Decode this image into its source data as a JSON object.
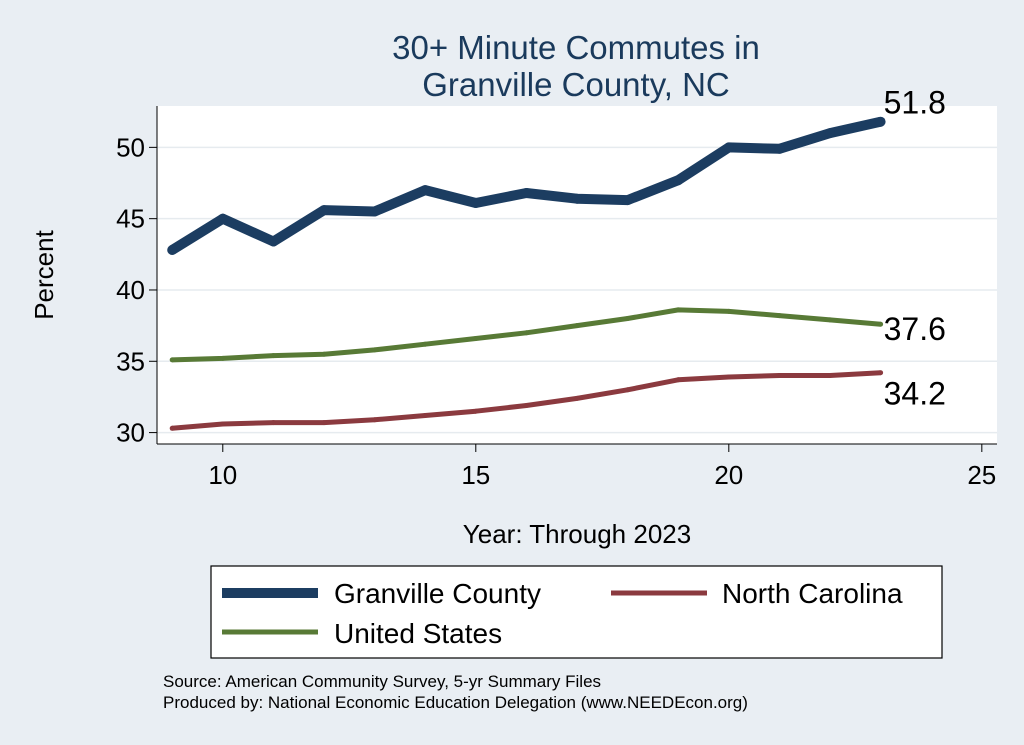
{
  "chart_data": {
    "type": "line",
    "title_lines": [
      "30+ Minute Commutes in",
      "Granville County, NC"
    ],
    "xlabel": "Year: Through 2023",
    "ylabel": "Percent",
    "xlim": [
      8.7,
      25.3
    ],
    "ylim": [
      29.2,
      52.9
    ],
    "xticks": [
      10,
      15,
      20,
      25
    ],
    "yticks": [
      30,
      35,
      40,
      45,
      50
    ],
    "x": [
      9,
      10,
      11,
      12,
      13,
      14,
      15,
      16,
      17,
      18,
      19,
      20,
      21,
      22,
      23
    ],
    "series": [
      {
        "name": "Granville County",
        "color": "#1c3d61",
        "values": [
          42.8,
          45.0,
          43.4,
          45.6,
          45.5,
          47.0,
          46.1,
          46.8,
          46.4,
          46.3,
          47.7,
          50.0,
          49.9,
          51.0,
          51.8
        ],
        "end_label": "51.8"
      },
      {
        "name": "North Carolina",
        "color": "#8b3a3f",
        "values": [
          30.3,
          30.6,
          30.7,
          30.7,
          30.9,
          31.2,
          31.5,
          31.9,
          32.4,
          33.0,
          33.7,
          33.9,
          34.0,
          34.0,
          34.2
        ],
        "end_label": "34.2"
      },
      {
        "name": "United States",
        "color": "#587a36",
        "values": [
          35.1,
          35.2,
          35.4,
          35.5,
          35.8,
          36.2,
          36.6,
          37.0,
          37.5,
          38.0,
          38.6,
          38.5,
          38.2,
          37.9,
          37.6
        ],
        "end_label": "37.6"
      }
    ],
    "legend": {
      "position": "bottom",
      "entries": [
        "Granville County",
        "North Carolina",
        "United States"
      ]
    },
    "grid": true
  },
  "footer": {
    "source_line": "Source: American Community Survey, 5-yr Summary Files",
    "produced_line": "Produced by: National Economic Education Delegation (www.NEEDEcon.org)"
  },
  "colors": {
    "background": "#e9eef3",
    "plot_background": "#ffffff",
    "title": "#1a3a5c",
    "gridline": "#e6ebef"
  }
}
